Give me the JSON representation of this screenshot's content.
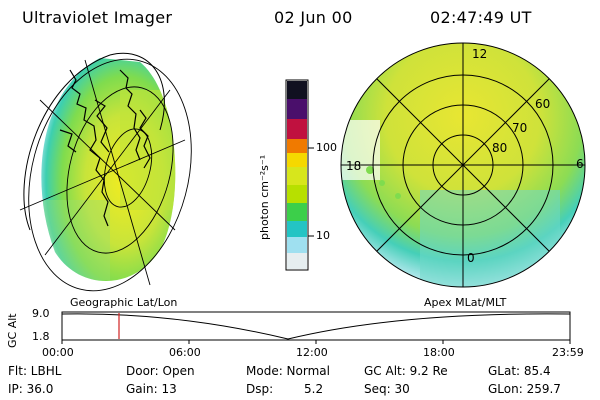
{
  "header": {
    "title": "Ultraviolet Imager",
    "date": "02 Jun 00",
    "time": "02:47:49 UT"
  },
  "colorbar": {
    "unit_label": "photon cm⁻²s⁻¹",
    "ticks": [
      "100",
      "10"
    ],
    "colors": [
      "#101020",
      "#4a0f6b",
      "#c0113f",
      "#f07a00",
      "#f5d800",
      "#b7e000",
      "#3ccf4a",
      "#23c4c4",
      "#9fe0f0",
      "#e6eef0"
    ]
  },
  "left_panel": {
    "label": "Geographic Lat/Lon"
  },
  "right_panel": {
    "label": "Apex MLat/MLT",
    "mlt_labels": {
      "top": "12",
      "left": "18",
      "right": "6",
      "bottom": "0"
    },
    "lat_labels": [
      "60",
      "70",
      "80"
    ]
  },
  "altitude_plot": {
    "ylabel": "GC Alt",
    "ytop": "9.0",
    "ybottom": "1.8",
    "time_ticks": [
      "00:00",
      "06:00",
      "12:00",
      "18:00",
      "23:59"
    ],
    "marker_color": "#d02020"
  },
  "info": {
    "flt": "Flt: LBHL",
    "door": "Door: Open",
    "mode": "Mode: Normal",
    "gc_alt": "GC Alt: 9.2 Re",
    "glat": "GLat: 85.4",
    "ip": "IP: 36.0",
    "gain": "Gain: 13",
    "dsp_label": "Dsp:",
    "dsp_value": "5.2",
    "seq": "Seq: 30",
    "glon": "GLon: 259.7"
  }
}
